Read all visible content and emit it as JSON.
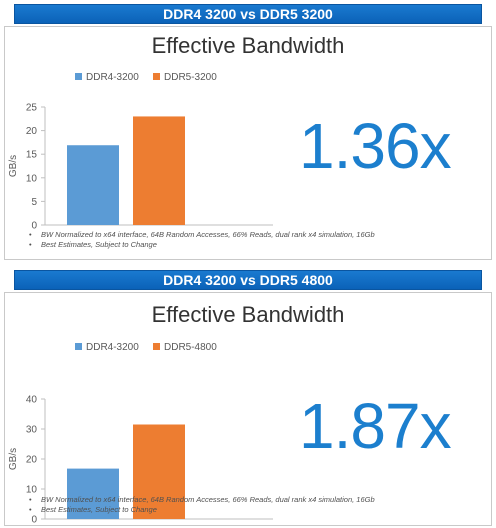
{
  "panels": [
    {
      "header": "DDR4 3200 vs DDR5 3200",
      "ratio": "1.36x",
      "notes": [
        "BW Normalized to x64 interface, 64B Random Accesses, 66% Reads, dual rank x4 simulation, 16Gb",
        "Best Estimates, Subject to Change"
      ]
    },
    {
      "header": "DDR4 3200 vs DDR5 4800",
      "ratio": "1.87x",
      "notes": [
        "BW Normalized to x64 interface, 64B Random Accesses, 66% Reads, dual rank x4 simulation, 16Gb",
        "Best Estimates, Subject to Change"
      ]
    }
  ],
  "colors": {
    "ddr4": "#5b9bd5",
    "ddr5": "#ed7d31",
    "header": "#1470c8",
    "ratio": "#1c7fce"
  },
  "chart_data": [
    {
      "type": "bar",
      "title": "Effective Bandwidth",
      "ylabel": "GB/s",
      "xlabel": "",
      "ylim": [
        0,
        25
      ],
      "yticks": [
        0,
        5,
        10,
        15,
        20,
        25
      ],
      "grid": false,
      "legend": "top",
      "series": [
        {
          "name": "DDR4-3200",
          "values": [
            16.9
          ]
        },
        {
          "name": "DDR5-3200",
          "values": [
            23.0
          ]
        }
      ]
    },
    {
      "type": "bar",
      "title": "Effective Bandwidth",
      "ylabel": "GB/s",
      "xlabel": "",
      "ylim": [
        0,
        40
      ],
      "yticks": [
        0,
        10,
        20,
        30,
        40
      ],
      "grid": false,
      "legend": "top",
      "series": [
        {
          "name": "DDR4-3200",
          "values": [
            16.8
          ]
        },
        {
          "name": "DDR5-4800",
          "values": [
            31.5
          ]
        }
      ]
    }
  ]
}
